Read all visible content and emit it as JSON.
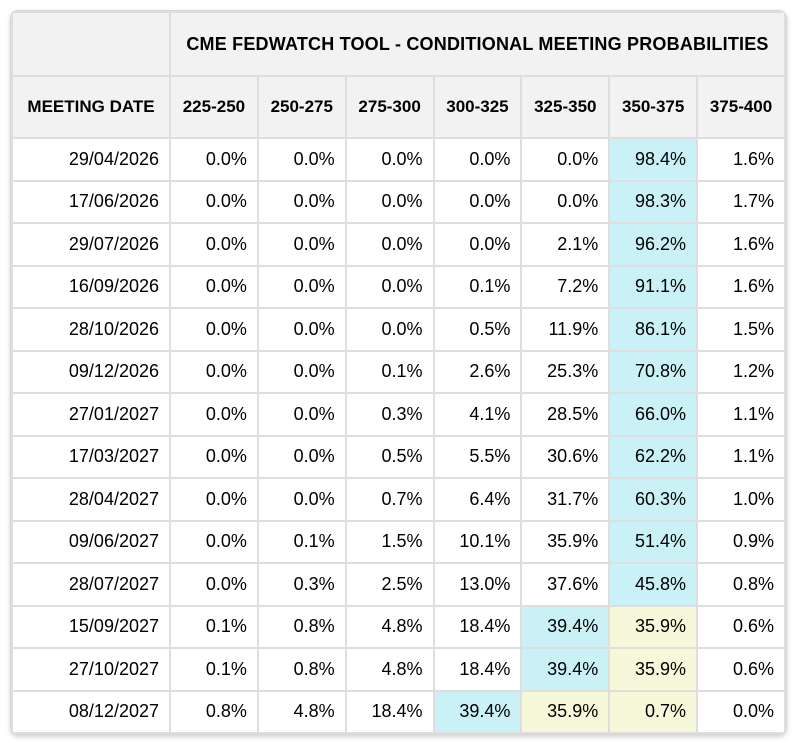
{
  "title": "CME FEDWATCH TOOL - CONDITIONAL MEETING PROBABILITIES",
  "colors": {
    "header_bg": "#f2f2f2",
    "grid_border": "#dedede",
    "highlight_cyan": "#c9f1f6",
    "highlight_yellow": "#f7f7d9"
  },
  "table": {
    "date_header": "MEETING DATE",
    "rate_headers": [
      "225-250",
      "250-275",
      "275-300",
      "300-325",
      "325-350",
      "350-375",
      "375-400"
    ],
    "rows": [
      {
        "date": "29/04/2026",
        "values": [
          "0.0%",
          "0.0%",
          "0.0%",
          "0.0%",
          "0.0%",
          "98.4%",
          "1.6%"
        ],
        "highlights": {
          "5": "cyan"
        }
      },
      {
        "date": "17/06/2026",
        "values": [
          "0.0%",
          "0.0%",
          "0.0%",
          "0.0%",
          "0.0%",
          "98.3%",
          "1.7%"
        ],
        "highlights": {
          "5": "cyan"
        }
      },
      {
        "date": "29/07/2026",
        "values": [
          "0.0%",
          "0.0%",
          "0.0%",
          "0.0%",
          "2.1%",
          "96.2%",
          "1.6%"
        ],
        "highlights": {
          "5": "cyan"
        }
      },
      {
        "date": "16/09/2026",
        "values": [
          "0.0%",
          "0.0%",
          "0.0%",
          "0.1%",
          "7.2%",
          "91.1%",
          "1.6%"
        ],
        "highlights": {
          "5": "cyan"
        }
      },
      {
        "date": "28/10/2026",
        "values": [
          "0.0%",
          "0.0%",
          "0.0%",
          "0.5%",
          "11.9%",
          "86.1%",
          "1.5%"
        ],
        "highlights": {
          "5": "cyan"
        }
      },
      {
        "date": "09/12/2026",
        "values": [
          "0.0%",
          "0.0%",
          "0.1%",
          "2.6%",
          "25.3%",
          "70.8%",
          "1.2%"
        ],
        "highlights": {
          "5": "cyan"
        }
      },
      {
        "date": "27/01/2027",
        "values": [
          "0.0%",
          "0.0%",
          "0.3%",
          "4.1%",
          "28.5%",
          "66.0%",
          "1.1%"
        ],
        "highlights": {
          "5": "cyan"
        }
      },
      {
        "date": "17/03/2027",
        "values": [
          "0.0%",
          "0.0%",
          "0.5%",
          "5.5%",
          "30.6%",
          "62.2%",
          "1.1%"
        ],
        "highlights": {
          "5": "cyan"
        }
      },
      {
        "date": "28/04/2027",
        "values": [
          "0.0%",
          "0.0%",
          "0.7%",
          "6.4%",
          "31.7%",
          "60.3%",
          "1.0%"
        ],
        "highlights": {
          "5": "cyan"
        }
      },
      {
        "date": "09/06/2027",
        "values": [
          "0.0%",
          "0.1%",
          "1.5%",
          "10.1%",
          "35.9%",
          "51.4%",
          "0.9%"
        ],
        "highlights": {
          "5": "cyan"
        }
      },
      {
        "date": "28/07/2027",
        "values": [
          "0.0%",
          "0.3%",
          "2.5%",
          "13.0%",
          "37.6%",
          "45.8%",
          "0.8%"
        ],
        "highlights": {
          "5": "cyan"
        }
      },
      {
        "date": "15/09/2027",
        "values": [
          "0.1%",
          "0.8%",
          "4.8%",
          "18.4%",
          "39.4%",
          "35.9%",
          "0.6%"
        ],
        "highlights": {
          "4": "cyan",
          "5": "yellow"
        }
      },
      {
        "date": "27/10/2027",
        "values": [
          "0.1%",
          "0.8%",
          "4.8%",
          "18.4%",
          "39.4%",
          "35.9%",
          "0.6%"
        ],
        "highlights": {
          "4": "cyan",
          "5": "yellow"
        }
      },
      {
        "date": "08/12/2027",
        "values": [
          "0.8%",
          "4.8%",
          "18.4%",
          "39.4%",
          "35.9%",
          "0.7%",
          "0.0%"
        ],
        "highlights": {
          "3": "cyan",
          "4": "yellow",
          "5": "yellow"
        }
      }
    ]
  }
}
